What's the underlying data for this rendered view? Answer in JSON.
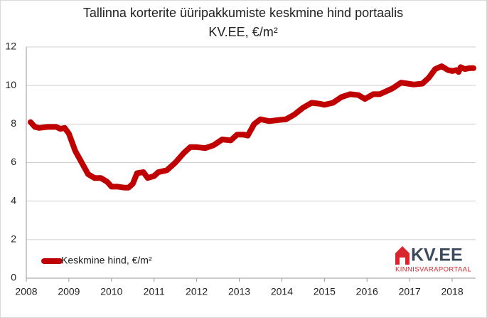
{
  "chart_data": {
    "type": "line",
    "title": "Tallinna korterite üüripakkumiste keskmine hind portaalis",
    "subtitle": "KV.EE, €/m²",
    "x": [
      2008.1,
      2008.2,
      2008.3,
      2008.5,
      2008.7,
      2008.8,
      2008.9,
      2009.0,
      2009.15,
      2009.3,
      2009.45,
      2009.6,
      2009.75,
      2009.9,
      2010.0,
      2010.15,
      2010.3,
      2010.4,
      2010.5,
      2010.6,
      2010.75,
      2010.85,
      2011.0,
      2011.1,
      2011.3,
      2011.5,
      2011.7,
      2011.85,
      2012.0,
      2012.2,
      2012.4,
      2012.6,
      2012.8,
      2012.95,
      2013.1,
      2013.2,
      2013.35,
      2013.5,
      2013.7,
      2013.9,
      2014.1,
      2014.3,
      2014.5,
      2014.7,
      2014.9,
      2015.0,
      2015.2,
      2015.4,
      2015.6,
      2015.8,
      2015.95,
      2016.15,
      2016.3,
      2016.45,
      2016.6,
      2016.8,
      2016.95,
      2017.1,
      2017.3,
      2017.45,
      2017.6,
      2017.75,
      2017.9,
      2018.0,
      2018.1,
      2018.15,
      2018.2,
      2018.3,
      2018.4,
      2018.5
    ],
    "series": [
      {
        "name": "Keskmine hind, €/m²",
        "color": "#c00000",
        "values": [
          8.1,
          7.85,
          7.8,
          7.85,
          7.85,
          7.75,
          7.8,
          7.5,
          6.6,
          6.0,
          5.4,
          5.2,
          5.2,
          5.0,
          4.75,
          4.75,
          4.7,
          4.7,
          4.9,
          5.45,
          5.5,
          5.2,
          5.3,
          5.5,
          5.6,
          6.0,
          6.5,
          6.8,
          6.8,
          6.75,
          6.9,
          7.2,
          7.15,
          7.45,
          7.45,
          7.4,
          8.0,
          8.25,
          8.15,
          8.2,
          8.25,
          8.5,
          8.85,
          9.1,
          9.05,
          9.0,
          9.1,
          9.4,
          9.55,
          9.5,
          9.3,
          9.55,
          9.55,
          9.7,
          9.85,
          10.15,
          10.1,
          10.05,
          10.1,
          10.4,
          10.85,
          11.0,
          10.8,
          10.75,
          10.8,
          10.7,
          10.95,
          10.85,
          10.9,
          10.9
        ]
      }
    ],
    "xlim": [
      2008,
      2018.55
    ],
    "xticks": [
      2008,
      2009,
      2010,
      2011,
      2012,
      2013,
      2014,
      2015,
      2016,
      2017,
      2018
    ],
    "ylim": [
      0,
      12
    ],
    "yticks": [
      0,
      2,
      4,
      6,
      8,
      10,
      12
    ],
    "grid": true,
    "legend": "bottom-left"
  },
  "logo": {
    "name": "KV.EE",
    "tagline": "KINNISVARAPORTAAL"
  }
}
